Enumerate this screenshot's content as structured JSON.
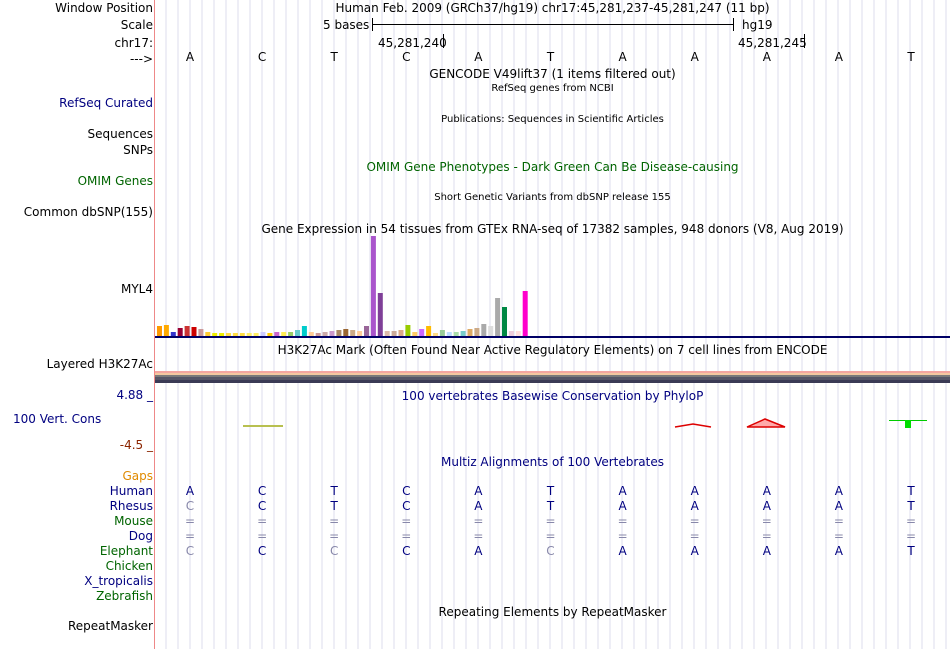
{
  "ruler": {
    "window_position_label": "Window Position",
    "window_position_text": "Human Feb. 2009 (GRCh37/hg19)   chr17:45,281,237-45,281,247 (11 bp)",
    "scale_label": "Scale",
    "scale_text": "5 bases",
    "scale_assembly": "hg19",
    "chrom_label": "chr17:",
    "coord_1": "45,281,240",
    "coord_2": "45,281,245",
    "strand_label": "--->"
  },
  "bases": [
    "A",
    "C",
    "T",
    "C",
    "A",
    "T",
    "A",
    "A",
    "A",
    "A",
    "T"
  ],
  "tracks": {
    "gencode_title": "GENCODE V49lift37 (1 items filtered out)",
    "refseq_subtitle": "RefSeq genes from NCBI",
    "refseq_label": "RefSeq Curated",
    "publications_title": "Publications: Sequences in Scientific Articles",
    "sequences_label": "Sequences",
    "snps_label": "SNPs",
    "omim_title": "OMIM Gene Phenotypes - Dark Green Can Be Disease-causing",
    "omim_label": "OMIM Genes",
    "dbsnp_title": "Short Genetic Variants from dbSNP release 155",
    "dbsnp_label": "Common dbSNP(155)",
    "gtex_title": "Gene Expression in 54 tissues from GTEx RNA-seq of 17382 samples, 948 donors (V8, Aug 2019)",
    "gtex_label": "MYL4",
    "h3k27_title": "H3K27Ac Mark (Often Found Near Active Regulatory Elements) on 7 cell lines from ENCODE",
    "h3k27_label": "Layered H3K27Ac",
    "phylop_title": "100 vertebrates Basewise Conservation by PhyloP",
    "phylop_max": "4.88 _",
    "phylop_label": "100 Vert. Cons",
    "phylop_min": "-4.5 _",
    "gaps_label": "Gaps",
    "multiz_title": "Multiz Alignments of 100 Vertebrates",
    "repeat_title": "Repeating Elements by RepeatMasker",
    "repeat_label": "RepeatMasker"
  },
  "gtex_values": [
    10,
    11,
    4,
    8,
    10,
    9,
    7,
    4,
    3,
    3,
    3,
    3,
    3,
    3,
    3,
    4,
    3,
    4,
    4,
    4,
    6,
    10,
    4,
    3,
    4,
    5,
    6,
    7,
    6,
    5,
    10,
    100,
    43,
    5,
    5,
    6,
    11,
    4,
    7,
    10,
    3,
    6,
    4,
    4,
    5,
    7,
    8,
    12,
    10,
    38,
    29,
    5,
    5,
    45
  ],
  "gtex_colors": [
    "#ff9900",
    "#ffaa00",
    "#3333cc",
    "#990033",
    "#cc3333",
    "#cc0000",
    "#cc9999",
    "#ffcc33",
    "#eeee00",
    "#eeee00",
    "#ffdd44",
    "#ffdd44",
    "#ffdd44",
    "#ffee66",
    "#ffee66",
    "#ccccff",
    "#ffcc00",
    "#cc66cc",
    "#ffee55",
    "#99cc66",
    "#66cccc",
    "#00cccc",
    "#ffcc99",
    "#cc9999",
    "#ccaaaa",
    "#cc99cc",
    "#aa8866",
    "#996633",
    "#ccaa88",
    "#ffcc99",
    "#996699",
    "#aa55cc",
    "#7f3f98",
    "#ddbbaa",
    "#ccaa99",
    "#ddaa88",
    "#99cc00",
    "#ffcc66",
    "#cc66ff",
    "#ffbb00",
    "#ffdd88",
    "#99cc99",
    "#bbddff",
    "#aaddaa",
    "#77cccc",
    "#ddaa66",
    "#ccaa88",
    "#aaaaaa",
    "#dddddd",
    "#aaaaaa",
    "#008844",
    "#eeccdd",
    "#ffdddd",
    "#ff00cc"
  ],
  "multiz": {
    "species": [
      {
        "name": "Human",
        "color": "#000080",
        "bases": [
          "A",
          "C",
          "T",
          "C",
          "A",
          "T",
          "A",
          "A",
          "A",
          "A",
          "T"
        ]
      },
      {
        "name": "Rhesus",
        "color": "#000080",
        "bases": [
          "C",
          "C",
          "T",
          "C",
          "A",
          "T",
          "A",
          "A",
          "A",
          "A",
          "T"
        ]
      },
      {
        "name": "Mouse",
        "color": "#006400",
        "bases": [
          "=",
          "=",
          "=",
          "=",
          "=",
          "=",
          "=",
          "=",
          "=",
          "=",
          "="
        ]
      },
      {
        "name": "Dog",
        "color": "#000080",
        "bases": [
          "=",
          "=",
          "=",
          "=",
          "=",
          "=",
          "=",
          "=",
          "=",
          "=",
          "="
        ]
      },
      {
        "name": "Elephant",
        "color": "#006400",
        "bases": [
          "C",
          "C",
          "C",
          "C",
          "A",
          "C",
          "A",
          "A",
          "A",
          "A",
          "T"
        ]
      },
      {
        "name": "Chicken",
        "color": "#006400",
        "bases": []
      },
      {
        "name": "X_tropicalis",
        "color": "#000080",
        "bases": []
      },
      {
        "name": "Zebrafish",
        "color": "#006400",
        "bases": []
      }
    ],
    "faint": [
      [
        false,
        false,
        false,
        false,
        false,
        false,
        false,
        false,
        false,
        false,
        false
      ],
      [
        true,
        false,
        false,
        false,
        false,
        false,
        false,
        false,
        false,
        false,
        false
      ],
      [
        true,
        true,
        true,
        true,
        true,
        true,
        true,
        true,
        true,
        true,
        true
      ],
      [
        true,
        true,
        true,
        true,
        true,
        true,
        true,
        true,
        true,
        true,
        true
      ],
      [
        true,
        false,
        true,
        false,
        false,
        true,
        false,
        false,
        false,
        false,
        false
      ]
    ]
  },
  "colors": {
    "label_blue": "#000080",
    "label_green": "#006400",
    "gaps_orange": "#e08a00",
    "phylop_min_color": "#8b2500"
  }
}
